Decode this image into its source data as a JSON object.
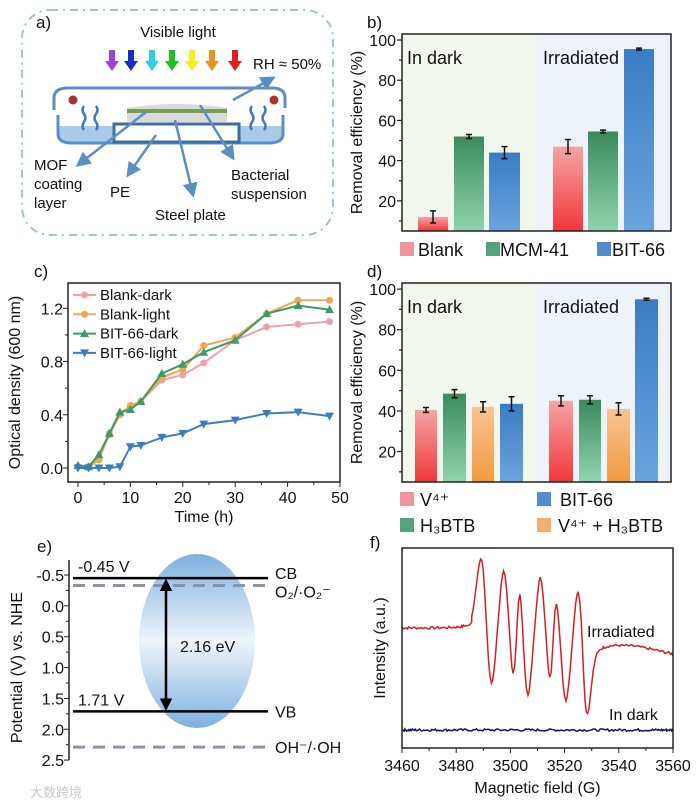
{
  "watermark": "大数跨境",
  "colors": {
    "pink": "#f08a90",
    "green": "#3f9a6c",
    "blue": "#3f80c8",
    "orange": "#f5a55a",
    "red": "#d42020",
    "navy": "#101070"
  },
  "panel_a": {
    "label": "a)",
    "visible_light": "Visible light",
    "rh": "RH ≈ 50%",
    "mof": [
      "MOF",
      "coating",
      "layer"
    ],
    "pe": "PE",
    "steel": "Steel plate",
    "bacterial": [
      "Bacterial",
      "suspension"
    ],
    "light_colors": [
      "#a040e0",
      "#1530c0",
      "#30d0e0",
      "#20c020",
      "#f0f020",
      "#f09020",
      "#e02020"
    ]
  },
  "chart_data": [
    {
      "id": "b",
      "label": "b)",
      "type": "bar",
      "ylabel": "Removal efficiency (%)",
      "ylim": [
        5,
        103
      ],
      "yticks": [
        20,
        40,
        60,
        80,
        100
      ],
      "groups": [
        "In dark",
        "Irradiated"
      ],
      "series": [
        {
          "name": "Blank",
          "color": "#f08a90",
          "values": [
            12,
            47
          ],
          "errors": [
            3,
            3.5
          ]
        },
        {
          "name": "MCM-41",
          "color": "#3f9a6c",
          "values": [
            52,
            54.5
          ],
          "errors": [
            1,
            0.7
          ]
        },
        {
          "name": "BIT-66",
          "color": "#3f80c8",
          "values": [
            44,
            95.5
          ],
          "errors": [
            3,
            0.5
          ]
        }
      ]
    },
    {
      "id": "c",
      "label": "c)",
      "type": "line",
      "xlabel": "Time (h)",
      "ylabel": "Optical density (600 nm)",
      "xlim": [
        -1.9,
        50
      ],
      "ylim": [
        -0.105,
        1.39
      ],
      "xticks": [
        0,
        10,
        20,
        30,
        40,
        50
      ],
      "yticks": [
        0.0,
        0.4,
        0.8,
        1.2
      ],
      "ytick_labels": [
        "0.0",
        "0.4",
        "0.8",
        "1.2"
      ],
      "x": [
        0,
        2,
        4,
        6,
        8,
        10,
        12,
        16,
        20,
        24,
        30,
        36,
        42,
        48
      ],
      "legend": "top-left",
      "series": [
        {
          "name": "Blank-dark",
          "color": "#f0a0aa",
          "marker": "circle",
          "values": [
            0.01,
            0.01,
            0.07,
            0.25,
            0.4,
            0.46,
            0.5,
            0.66,
            0.7,
            0.79,
            0.96,
            1.06,
            1.08,
            1.1
          ]
        },
        {
          "name": "Blank-light",
          "color": "#f0a850",
          "marker": "circle",
          "values": [
            0.01,
            0.01,
            0.06,
            0.26,
            0.4,
            0.47,
            0.5,
            0.68,
            0.74,
            0.92,
            0.98,
            1.16,
            1.26,
            1.26
          ]
        },
        {
          "name": "BIT-66-dark",
          "color": "#3a9a6a",
          "marker": "triangle-up",
          "values": [
            0.02,
            0.01,
            0.1,
            0.26,
            0.42,
            0.44,
            0.5,
            0.71,
            0.78,
            0.87,
            0.96,
            1.16,
            1.22,
            1.19
          ]
        },
        {
          "name": "BIT-66-light",
          "color": "#3a7ec0",
          "marker": "triangle-down",
          "values": [
            0.0,
            0.0,
            0.0,
            0.0,
            0.01,
            0.16,
            0.17,
            0.23,
            0.26,
            0.33,
            0.36,
            0.41,
            0.42,
            0.39
          ]
        }
      ]
    },
    {
      "id": "d",
      "label": "d)",
      "type": "bar",
      "ylabel": "Removal efficiency (%)",
      "ylim": [
        5,
        103
      ],
      "yticks": [
        20,
        40,
        60,
        80,
        100
      ],
      "groups": [
        "In dark",
        "Irradiated"
      ],
      "series": [
        {
          "name": "V⁴⁺",
          "color": "#f08a90",
          "values": [
            40.5,
            45
          ],
          "errors": [
            1.2,
            2.5
          ]
        },
        {
          "name": "H₃BTB",
          "color": "#3f9a6c",
          "values": [
            48.5,
            45.5
          ],
          "errors": [
            2,
            2
          ]
        },
        {
          "name": "V⁴⁺ + H₃BTB",
          "color": "#f5a55a",
          "values": [
            42,
            41
          ],
          "errors": [
            2.5,
            3
          ]
        },
        {
          "name": "BIT-66",
          "color": "#3f80c8",
          "values": [
            43.5,
            95
          ],
          "errors": [
            3.5,
            0.5
          ]
        }
      ]
    },
    {
      "id": "e",
      "label": "e)",
      "type": "diagram",
      "ylabel": "Potential (V) vs. NHE",
      "ylim": [
        -0.5,
        2.5
      ],
      "yticks": [
        -0.5,
        0.0,
        0.5,
        1.0,
        1.5,
        2.0,
        2.5
      ],
      "ytick_labels": [
        "-0.5",
        "0.0",
        "0.5",
        "1.0",
        "1.5",
        "2.0",
        "2.5"
      ],
      "cb": {
        "value": -0.45,
        "label": "CB",
        "text": "-0.45 V"
      },
      "vb": {
        "value": 1.71,
        "label": "VB",
        "text": "1.71 V"
      },
      "o2": {
        "value": -0.33,
        "label": "O₂/·O₂⁻"
      },
      "oh": {
        "value": 2.29,
        "label": "OH⁻/·OH"
      },
      "gap": "2.16 eV"
    },
    {
      "id": "f",
      "label": "f)",
      "type": "line",
      "xlabel": "Magnetic field (G)",
      "ylabel": "Intensity (a.u.)",
      "xlim": [
        3460,
        3560
      ],
      "ylim": [
        0,
        100
      ],
      "xticks": [
        3460,
        3480,
        3500,
        3520,
        3540,
        3560
      ],
      "series": [
        {
          "name": "Irradiated",
          "color": "#d42020",
          "points": [
            [
              3460,
              60
            ],
            [
              3483,
              61
            ],
            [
              3486,
              68
            ],
            [
              3489.5,
              93.5
            ],
            [
              3493,
              32.5
            ],
            [
              3497.5,
              88
            ],
            [
              3501,
              37.5
            ],
            [
              3503.5,
              76.5
            ],
            [
              3506.5,
              26.5
            ],
            [
              3511,
              85
            ],
            [
              3514.5,
              35
            ],
            [
              3517,
              72.5
            ],
            [
              3520.5,
              24
            ],
            [
              3525,
              78.5
            ],
            [
              3528,
              18
            ],
            [
              3531,
              42
            ],
            [
              3534,
              50
            ],
            [
              3545,
              51
            ],
            [
              3560,
              47
            ]
          ]
        },
        {
          "name": "In dark",
          "color": "#101070",
          "points": [
            [
              3460,
              9
            ],
            [
              3560,
              9
            ]
          ]
        }
      ]
    }
  ]
}
